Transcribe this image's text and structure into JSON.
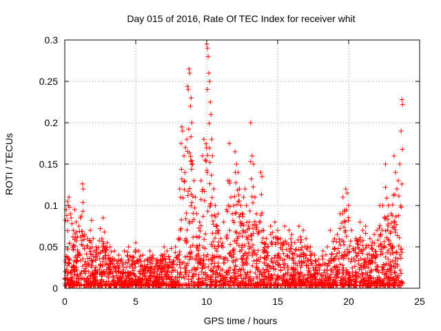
{
  "chart_data": {
    "type": "scatter",
    "title": "Day 015 of 2016, Rate Of TEC Index for receiver whit",
    "xlabel": "GPS time / hours",
    "ylabel": "ROTI / TECUs",
    "xlim": [
      0,
      25
    ],
    "ylim": [
      0,
      0.3
    ],
    "xticks": [
      0,
      5,
      10,
      15,
      20,
      25
    ],
    "yticks": [
      0,
      0.05,
      0.1,
      0.15,
      0.2,
      0.25,
      0.3
    ],
    "xtick_labels": [
      "0",
      "5",
      "10",
      "15",
      "20",
      "25"
    ],
    "ytick_labels": [
      "0",
      "0.05",
      "0.1",
      "0.15",
      "0.2",
      "0.25",
      "0.3"
    ],
    "grid": true,
    "marker": "+",
    "color": "#ff0000",
    "points": [
      [
        0.05,
        0.082
      ],
      [
        0.1,
        0.095
      ],
      [
        0.15,
        0.088
      ],
      [
        0.2,
        0.105
      ],
      [
        0.25,
        0.1
      ],
      [
        0.3,
        0.11
      ],
      [
        0.35,
        0.098
      ],
      [
        0.4,
        0.09
      ],
      [
        0.45,
        0.085
      ],
      [
        0.5,
        0.078
      ],
      [
        0.6,
        0.07
      ],
      [
        0.7,
        0.095
      ],
      [
        0.8,
        0.08
      ],
      [
        0.9,
        0.062
      ],
      [
        1.0,
        0.075
      ],
      [
        1.1,
        0.085
      ],
      [
        1.25,
        0.126
      ],
      [
        1.3,
        0.12
      ],
      [
        1.4,
        0.065
      ],
      [
        1.6,
        0.06
      ],
      [
        1.8,
        0.07
      ],
      [
        1.9,
        0.082
      ],
      [
        2.0,
        0.06
      ],
      [
        2.2,
        0.05
      ],
      [
        2.5,
        0.072
      ],
      [
        2.7,
        0.085
      ],
      [
        2.8,
        0.068
      ],
      [
        3.0,
        0.055
      ],
      [
        3.2,
        0.05
      ],
      [
        3.5,
        0.045
      ],
      [
        3.8,
        0.04
      ],
      [
        4.0,
        0.035
      ],
      [
        4.2,
        0.045
      ],
      [
        4.5,
        0.05
      ],
      [
        4.8,
        0.038
      ],
      [
        5.0,
        0.055
      ],
      [
        5.2,
        0.045
      ],
      [
        5.5,
        0.04
      ],
      [
        5.8,
        0.035
      ],
      [
        6.0,
        0.045
      ],
      [
        6.2,
        0.04
      ],
      [
        6.5,
        0.035
      ],
      [
        6.8,
        0.04
      ],
      [
        7.0,
        0.05
      ],
      [
        7.2,
        0.045
      ],
      [
        7.5,
        0.048
      ],
      [
        7.8,
        0.05
      ],
      [
        8.0,
        0.06
      ],
      [
        8.1,
        0.12
      ],
      [
        8.2,
        0.175
      ],
      [
        8.25,
        0.195
      ],
      [
        8.3,
        0.19
      ],
      [
        8.4,
        0.16
      ],
      [
        8.5,
        0.17
      ],
      [
        8.6,
        0.18
      ],
      [
        8.65,
        0.244
      ],
      [
        8.7,
        0.24
      ],
      [
        8.75,
        0.265
      ],
      [
        8.8,
        0.26
      ],
      [
        8.85,
        0.22
      ],
      [
        8.9,
        0.23
      ],
      [
        8.95,
        0.2
      ],
      [
        9.0,
        0.15
      ],
      [
        9.1,
        0.13
      ],
      [
        9.2,
        0.11
      ],
      [
        9.3,
        0.09
      ],
      [
        9.5,
        0.08
      ],
      [
        9.6,
        0.13
      ],
      [
        9.7,
        0.16
      ],
      [
        9.8,
        0.18
      ],
      [
        9.9,
        0.155
      ],
      [
        10.0,
        0.295
      ],
      [
        10.05,
        0.29
      ],
      [
        10.1,
        0.28
      ],
      [
        10.15,
        0.26
      ],
      [
        10.2,
        0.25
      ],
      [
        10.25,
        0.225
      ],
      [
        10.3,
        0.21
      ],
      [
        10.35,
        0.18
      ],
      [
        10.4,
        0.16
      ],
      [
        10.5,
        0.12
      ],
      [
        10.6,
        0.1
      ],
      [
        10.8,
        0.09
      ],
      [
        11.0,
        0.06
      ],
      [
        11.2,
        0.08
      ],
      [
        11.4,
        0.095
      ],
      [
        11.5,
        0.13
      ],
      [
        11.6,
        0.175
      ],
      [
        11.7,
        0.11
      ],
      [
        11.8,
        0.09
      ],
      [
        11.9,
        0.1
      ],
      [
        12.0,
        0.165
      ],
      [
        12.1,
        0.15
      ],
      [
        12.2,
        0.14
      ],
      [
        12.3,
        0.12
      ],
      [
        12.4,
        0.1
      ],
      [
        12.5,
        0.09
      ],
      [
        12.6,
        0.11
      ],
      [
        12.7,
        0.12
      ],
      [
        12.8,
        0.1
      ],
      [
        13.0,
        0.08
      ],
      [
        13.1,
        0.2
      ],
      [
        13.2,
        0.16
      ],
      [
        13.3,
        0.15
      ],
      [
        13.4,
        0.11
      ],
      [
        13.5,
        0.09
      ],
      [
        13.7,
        0.08
      ],
      [
        13.8,
        0.14
      ],
      [
        13.9,
        0.135
      ],
      [
        14.0,
        0.07
      ],
      [
        14.2,
        0.06
      ],
      [
        14.5,
        0.075
      ],
      [
        14.8,
        0.08
      ],
      [
        15.0,
        0.07
      ],
      [
        15.2,
        0.06
      ],
      [
        15.5,
        0.075
      ],
      [
        15.8,
        0.07
      ],
      [
        16.0,
        0.065
      ],
      [
        16.2,
        0.055
      ],
      [
        16.5,
        0.075
      ],
      [
        16.8,
        0.07
      ],
      [
        17.0,
        0.06
      ],
      [
        17.3,
        0.05
      ],
      [
        17.6,
        0.04
      ],
      [
        17.9,
        0.035
      ],
      [
        18.2,
        0.045
      ],
      [
        18.5,
        0.05
      ],
      [
        18.7,
        0.07
      ],
      [
        19.0,
        0.06
      ],
      [
        19.2,
        0.065
      ],
      [
        19.4,
        0.09
      ],
      [
        19.6,
        0.11
      ],
      [
        19.8,
        0.12
      ],
      [
        19.9,
        0.115
      ],
      [
        20.0,
        0.1
      ],
      [
        20.2,
        0.07
      ],
      [
        20.5,
        0.06
      ],
      [
        20.8,
        0.08
      ],
      [
        21.0,
        0.07
      ],
      [
        21.2,
        0.075
      ],
      [
        21.5,
        0.06
      ],
      [
        21.8,
        0.065
      ],
      [
        22.0,
        0.07
      ],
      [
        22.2,
        0.1
      ],
      [
        22.4,
        0.1
      ],
      [
        22.6,
        0.15
      ],
      [
        22.8,
        0.1
      ],
      [
        23.0,
        0.09
      ],
      [
        23.2,
        0.16
      ],
      [
        23.3,
        0.14
      ],
      [
        23.4,
        0.12
      ],
      [
        23.5,
        0.13
      ],
      [
        23.6,
        0.15
      ],
      [
        23.7,
        0.19
      ],
      [
        23.75,
        0.228
      ],
      [
        23.8,
        0.222
      ]
    ]
  }
}
